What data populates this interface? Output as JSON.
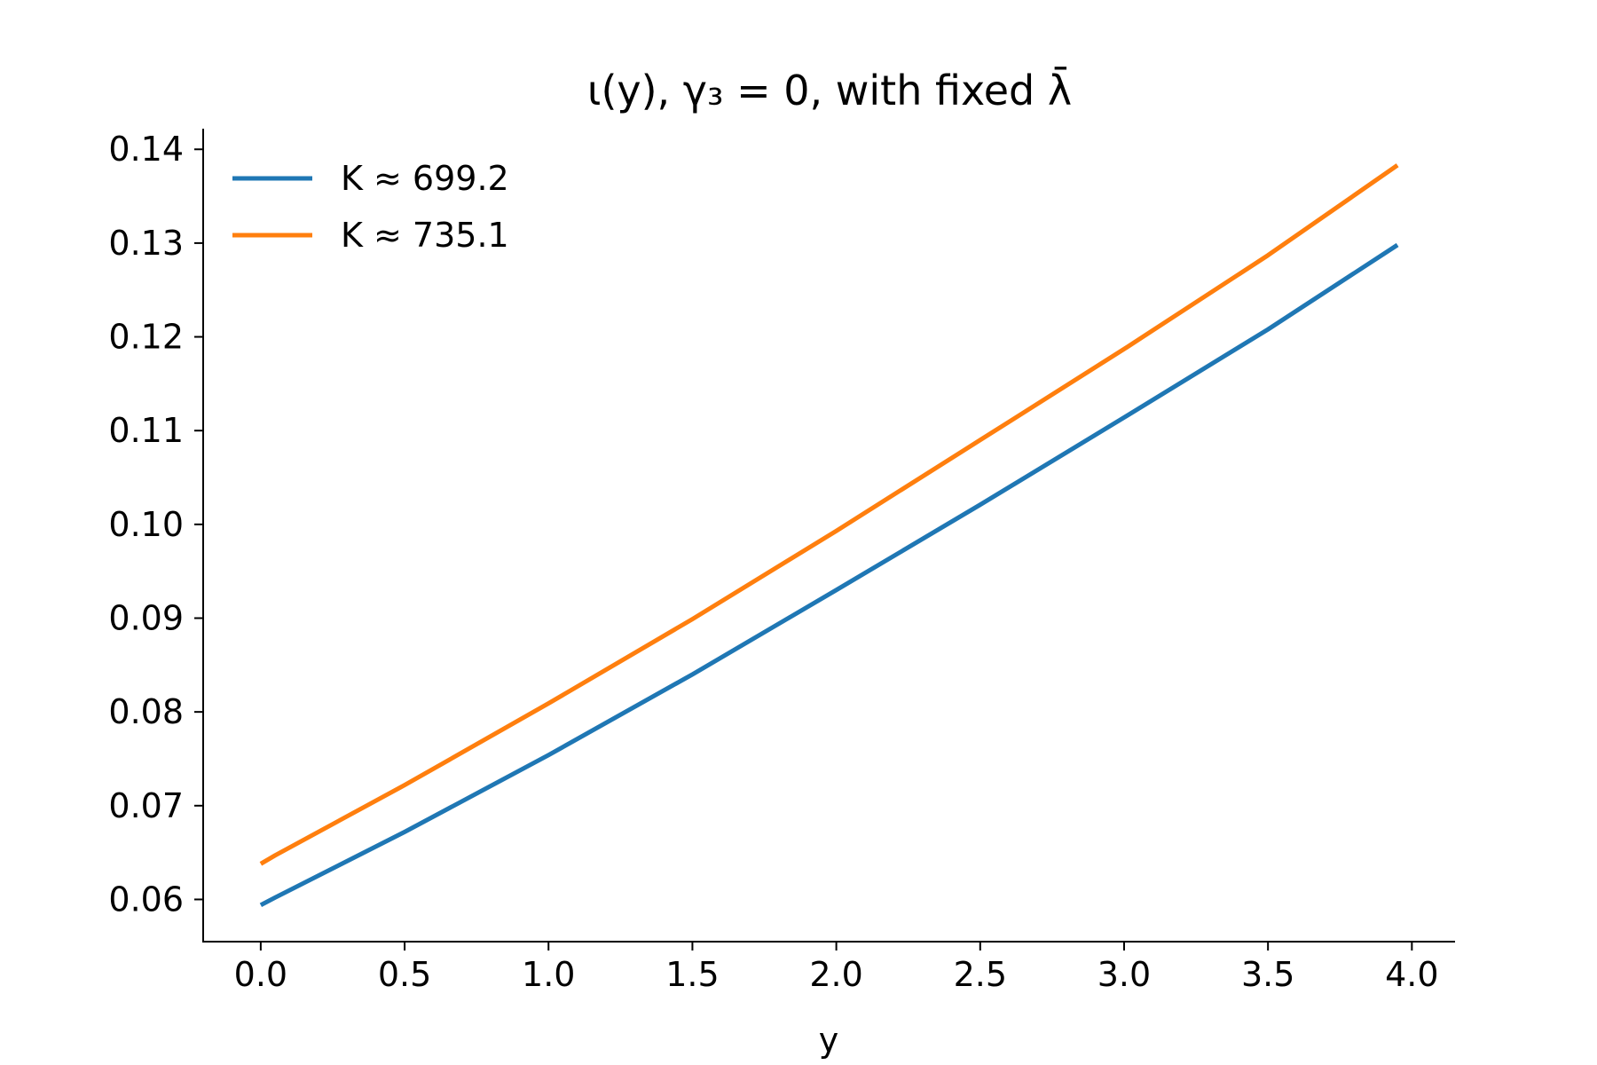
{
  "chart_data": {
    "type": "line",
    "title": "ι(y), γ₃ = 0, with fixed λ̄",
    "xlabel": "y",
    "ylabel": "",
    "xlim": [
      -0.2,
      4.15
    ],
    "ylim": [
      0.0555,
      0.1422
    ],
    "xticks": [
      0.0,
      0.5,
      1.0,
      1.5,
      2.0,
      2.5,
      3.0,
      3.5,
      4.0
    ],
    "xtick_labels": [
      "0.0",
      "0.5",
      "1.0",
      "1.5",
      "2.0",
      "2.5",
      "3.0",
      "3.5",
      "4.0"
    ],
    "yticks": [
      0.06,
      0.07,
      0.08,
      0.09,
      0.1,
      0.11,
      0.12,
      0.13,
      0.14
    ],
    "ytick_labels": [
      "0.06",
      "0.07",
      "0.08",
      "0.09",
      "0.10",
      "0.11",
      "0.12",
      "0.13",
      "0.14"
    ],
    "grid": false,
    "legend_position": "top-left",
    "x": [
      0.0,
      0.05,
      0.5,
      1.0,
      1.5,
      2.0,
      2.5,
      3.0,
      3.5,
      3.95
    ],
    "series": [
      {
        "name": "K ≈ 699.2",
        "color": "#1f77b4",
        "values": [
          0.0594,
          0.0602,
          0.0672,
          0.0754,
          0.084,
          0.093,
          0.1021,
          0.1114,
          0.1208,
          0.1298
        ]
      },
      {
        "name": "K ≈ 735.1",
        "color": "#ff7f0e",
        "values": [
          0.0638,
          0.0647,
          0.0722,
          0.0809,
          0.0899,
          0.0993,
          0.109,
          0.1187,
          0.1287,
          0.1383
        ]
      }
    ]
  }
}
